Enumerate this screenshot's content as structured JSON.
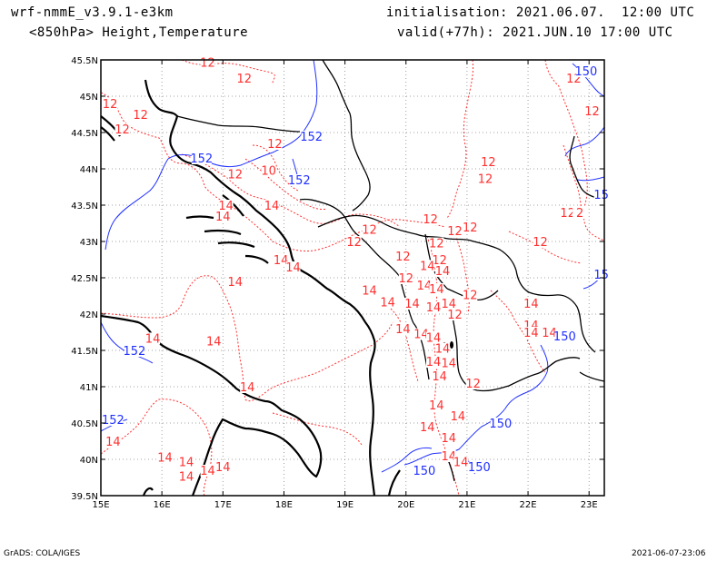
{
  "header": {
    "model": "wrf-nmmE_v3.9.1-e3km",
    "level_fields": "<850hPa> Height,Temperature",
    "init_label": "initialisation: 2021.06.07.  12:00 UTC",
    "valid_label": "valid(+77h): 2021.JUN.10 17:00 UTC"
  },
  "footer": {
    "credit": "GrADS: COLA/IGES",
    "timestamp": "2021-06-07-23:06"
  },
  "map": {
    "lon_ticks": [
      "15E",
      "16E",
      "17E",
      "18E",
      "19E",
      "20E",
      "21E",
      "22E",
      "23E"
    ],
    "lat_ticks": [
      "45.5N",
      "45N",
      "44.5N",
      "44N",
      "43.5N",
      "43N",
      "42.5N",
      "42N",
      "41.5N",
      "41N",
      "40.5N",
      "40N",
      "39.5N"
    ],
    "lon_range": [
      15,
      23.25
    ],
    "lat_range": [
      39.5,
      45.5
    ],
    "grid": true,
    "colors": {
      "temperature": "#ff3030",
      "height": "#2030ff",
      "coast": "#000000",
      "border": "#000000",
      "grid": "#888888"
    },
    "temperature_labels": [
      {
        "t": "12",
        "lon": 16.75,
        "lat": 45.42
      },
      {
        "t": "12",
        "lon": 17.35,
        "lat": 45.2
      },
      {
        "t": "12",
        "lon": 15.15,
        "lat": 44.85
      },
      {
        "t": "12",
        "lon": 15.65,
        "lat": 44.7
      },
      {
        "t": "12",
        "lon": 15.35,
        "lat": 44.5
      },
      {
        "t": "12",
        "lon": 17.85,
        "lat": 44.3
      },
      {
        "t": "10",
        "lon": 17.75,
        "lat": 43.93
      },
      {
        "t": "12",
        "lon": 17.2,
        "lat": 43.88
      },
      {
        "t": "14",
        "lon": 17.05,
        "lat": 43.45
      },
      {
        "t": "14",
        "lon": 17.0,
        "lat": 43.3
      },
      {
        "t": "14",
        "lon": 17.8,
        "lat": 43.45
      },
      {
        "t": "12",
        "lon": 19.15,
        "lat": 42.95
      },
      {
        "t": "12",
        "lon": 19.4,
        "lat": 43.12
      },
      {
        "t": "12",
        "lon": 19.95,
        "lat": 42.75
      },
      {
        "t": "14",
        "lon": 17.95,
        "lat": 42.7
      },
      {
        "t": "14",
        "lon": 18.15,
        "lat": 42.6
      },
      {
        "t": "14",
        "lon": 19.4,
        "lat": 42.28
      },
      {
        "t": "14",
        "lon": 19.7,
        "lat": 42.12
      },
      {
        "t": "14",
        "lon": 17.2,
        "lat": 42.4
      },
      {
        "t": "14",
        "lon": 15.85,
        "lat": 41.62
      },
      {
        "t": "14",
        "lon": 16.85,
        "lat": 41.58
      },
      {
        "t": "14",
        "lon": 17.4,
        "lat": 40.95
      },
      {
        "t": "14",
        "lon": 15.2,
        "lat": 40.2
      },
      {
        "t": "14",
        "lon": 16.05,
        "lat": 39.98
      },
      {
        "t": "14",
        "lon": 16.4,
        "lat": 39.92
      },
      {
        "t": "14",
        "lon": 16.4,
        "lat": 39.72
      },
      {
        "t": "14",
        "lon": 16.75,
        "lat": 39.8
      },
      {
        "t": "14",
        "lon": 17.0,
        "lat": 39.85
      },
      {
        "t": "12",
        "lon": 20.4,
        "lat": 43.26
      },
      {
        "t": "12",
        "lon": 20.8,
        "lat": 43.1
      },
      {
        "t": "12",
        "lon": 20.5,
        "lat": 42.93
      },
      {
        "t": "12",
        "lon": 21.05,
        "lat": 43.15
      },
      {
        "t": "12",
        "lon": 20.55,
        "lat": 42.7
      },
      {
        "t": "12",
        "lon": 20.0,
        "lat": 42.45
      },
      {
        "t": "14",
        "lon": 20.35,
        "lat": 42.62
      },
      {
        "t": "14",
        "lon": 20.6,
        "lat": 42.55
      },
      {
        "t": "14",
        "lon": 20.3,
        "lat": 42.35
      },
      {
        "t": "14",
        "lon": 20.5,
        "lat": 42.3
      },
      {
        "t": "14",
        "lon": 20.7,
        "lat": 42.1
      },
      {
        "t": "14",
        "lon": 20.45,
        "lat": 42.05
      },
      {
        "t": "14",
        "lon": 20.1,
        "lat": 42.1
      },
      {
        "t": "12",
        "lon": 21.05,
        "lat": 42.22
      },
      {
        "t": "12",
        "lon": 20.8,
        "lat": 41.95
      },
      {
        "t": "14",
        "lon": 19.95,
        "lat": 41.75
      },
      {
        "t": "14",
        "lon": 20.25,
        "lat": 41.68
      },
      {
        "t": "14",
        "lon": 20.45,
        "lat": 41.63
      },
      {
        "t": "14",
        "lon": 20.6,
        "lat": 41.48
      },
      {
        "t": "14",
        "lon": 20.45,
        "lat": 41.3
      },
      {
        "t": "14",
        "lon": 20.7,
        "lat": 41.28
      },
      {
        "t": "14",
        "lon": 20.55,
        "lat": 41.1
      },
      {
        "t": "12",
        "lon": 21.1,
        "lat": 41.0
      },
      {
        "t": "14",
        "lon": 20.5,
        "lat": 40.7
      },
      {
        "t": "14",
        "lon": 20.85,
        "lat": 40.55
      },
      {
        "t": "14",
        "lon": 20.7,
        "lat": 40.25
      },
      {
        "t": "14",
        "lon": 20.35,
        "lat": 40.4
      },
      {
        "t": "14",
        "lon": 20.7,
        "lat": 40.0
      },
      {
        "t": "14",
        "lon": 20.9,
        "lat": 39.92
      },
      {
        "t": "12",
        "lon": 21.35,
        "lat": 44.05
      },
      {
        "t": "12",
        "lon": 21.3,
        "lat": 43.82
      },
      {
        "t": "12",
        "lon": 22.65,
        "lat": 43.35
      },
      {
        "t": "2",
        "lon": 22.85,
        "lat": 43.35
      },
      {
        "t": "12",
        "lon": 22.2,
        "lat": 42.95
      },
      {
        "t": "14",
        "lon": 22.05,
        "lat": 42.1
      },
      {
        "t": "14",
        "lon": 22.05,
        "lat": 41.8
      },
      {
        "t": "14",
        "lon": 22.05,
        "lat": 41.7
      },
      {
        "t": "14",
        "lon": 22.35,
        "lat": 41.7
      },
      {
        "t": "12",
        "lon": 22.75,
        "lat": 45.2
      },
      {
        "t": "12",
        "lon": 23.05,
        "lat": 44.75
      }
    ],
    "height_labels": [
      {
        "t": "150",
        "lon": 22.95,
        "lat": 45.3
      },
      {
        "t": "152",
        "lon": 18.45,
        "lat": 44.4
      },
      {
        "t": "152",
        "lon": 16.65,
        "lat": 44.1
      },
      {
        "t": "152",
        "lon": 18.25,
        "lat": 43.8
      },
      {
        "t": "152",
        "lon": 15.55,
        "lat": 41.45
      },
      {
        "t": "152",
        "lon": 15.2,
        "lat": 40.5
      },
      {
        "t": "150",
        "lon": 22.6,
        "lat": 41.65
      },
      {
        "t": "150",
        "lon": 21.55,
        "lat": 40.45
      },
      {
        "t": "150",
        "lon": 20.3,
        "lat": 39.8
      },
      {
        "t": "150",
        "lon": 21.2,
        "lat": 39.85
      },
      {
        "t": "15",
        "lon": 23.2,
        "lat": 42.5
      },
      {
        "t": "15",
        "lon": 23.2,
        "lat": 43.6
      }
    ]
  }
}
